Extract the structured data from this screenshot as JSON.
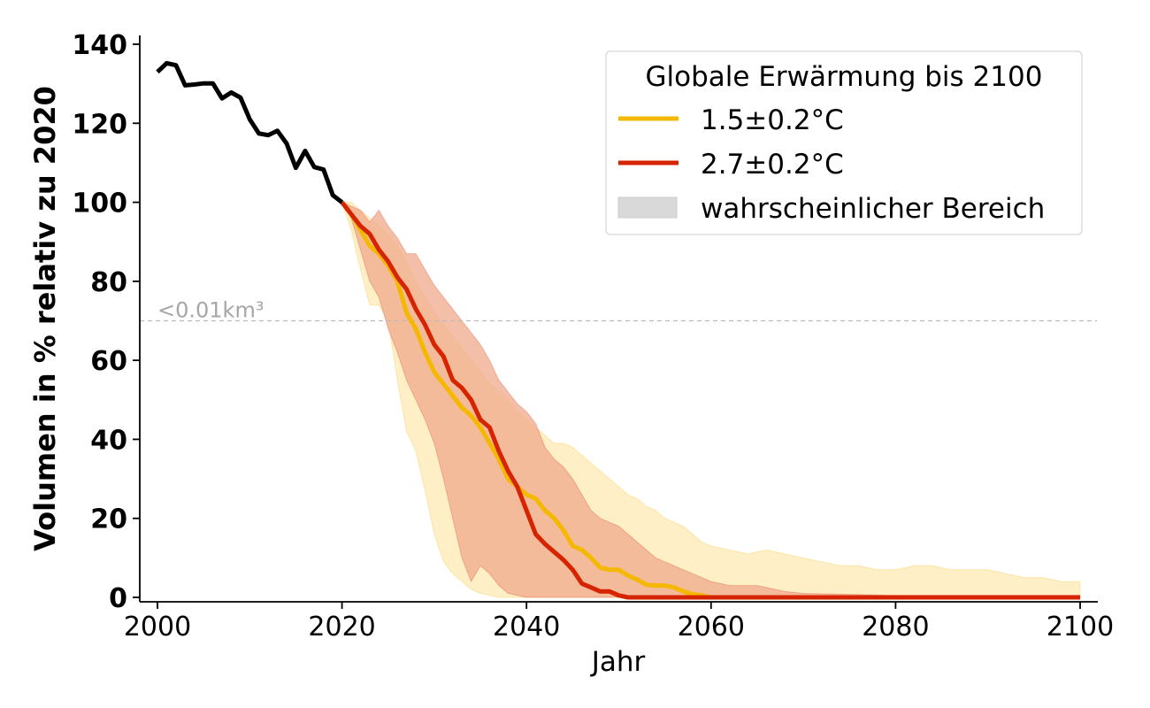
{
  "chart_data": {
    "type": "line",
    "xlabel": "Jahr",
    "ylabel": "Volumen in % relativ zu 2020",
    "xlim": [
      1998,
      2102
    ],
    "ylim": [
      -1,
      141
    ],
    "x_ticks": [
      2000,
      2020,
      2040,
      2060,
      2080,
      2100
    ],
    "y_ticks": [
      0,
      20,
      40,
      60,
      80,
      100,
      120,
      140
    ],
    "spines": "left-bottom",
    "grid": false,
    "reference_line": {
      "y": 70,
      "label": "<0.01km³",
      "style": "dashed",
      "color": "#bbbbbb"
    },
    "legend": {
      "title": "Globale Erwärmung bis 2100",
      "placement": "top-right",
      "entries": [
        {
          "label": "1.5±0.2°C",
          "kind": "line",
          "color": "#f5b800"
        },
        {
          "label": "2.7±0.2°C",
          "kind": "line",
          "color": "#d62400"
        },
        {
          "label": "wahrscheinlicher Bereich",
          "kind": "patch",
          "color": "#d9d9d9"
        }
      ]
    },
    "series": [
      {
        "kind": "historical",
        "color": "#000000",
        "x": [
          2000,
          2001,
          2002,
          2003,
          2004,
          2005,
          2006,
          2007,
          2008,
          2009,
          2010,
          2011,
          2012,
          2013,
          2014,
          2015,
          2016,
          2017,
          2018,
          2019,
          2020
        ],
        "y": [
          133,
          135.2,
          134.7,
          129.6,
          129.8,
          130.1,
          130.1,
          126.3,
          127.8,
          126.5,
          121,
          117.4,
          117,
          118.1,
          114.9,
          108.7,
          113,
          108.9,
          108.3,
          101.8,
          100
        ]
      },
      {
        "name": "1.5±0.2°C",
        "color": "#f5b800",
        "band_color": "#fde4a0",
        "x": [
          2020,
          2021,
          2022,
          2023,
          2024,
          2025,
          2026,
          2027,
          2028,
          2029,
          2030,
          2031,
          2032,
          2033,
          2034,
          2035,
          2036,
          2037,
          2038,
          2039,
          2040,
          2041,
          2042,
          2043,
          2044,
          2045,
          2046,
          2047,
          2048,
          2049,
          2050,
          2051,
          2052,
          2053,
          2054,
          2055,
          2056,
          2057,
          2058,
          2059,
          2060,
          2065,
          2070,
          2080,
          2090,
          2100
        ],
        "y": [
          100,
          97,
          93,
          89,
          87,
          84,
          80,
          72,
          68,
          62,
          57,
          54,
          51,
          48,
          46,
          43,
          39,
          35,
          30,
          28,
          26,
          25,
          22,
          20,
          17,
          13,
          12,
          10,
          7.5,
          7,
          7,
          5.5,
          4.5,
          3.2,
          3,
          3,
          2.5,
          1.5,
          0.8,
          0.5,
          0,
          0,
          0,
          0,
          0,
          0
        ],
        "band_x": [
          2020,
          2021,
          2022,
          2023,
          2024,
          2025,
          2026,
          2027,
          2028,
          2029,
          2030,
          2031,
          2032,
          2033,
          2034,
          2035,
          2036,
          2037,
          2038,
          2039,
          2040,
          2041,
          2042,
          2043,
          2044,
          2045,
          2046,
          2047,
          2048,
          2049,
          2050,
          2051,
          2052,
          2053,
          2054,
          2055,
          2056,
          2057,
          2058,
          2059,
          2060,
          2062,
          2064,
          2066,
          2068,
          2070,
          2072,
          2074,
          2076,
          2078,
          2080,
          2082,
          2084,
          2086,
          2088,
          2090,
          2092,
          2094,
          2096,
          2098,
          2100
        ],
        "band_upper": [
          100,
          100,
          98,
          96,
          94,
          92,
          89,
          85,
          80,
          76,
          72,
          69,
          66,
          63,
          60,
          57,
          54,
          52,
          50,
          47,
          45,
          43,
          41,
          39,
          39,
          38,
          36,
          34,
          32,
          30,
          28,
          26,
          25,
          23,
          22,
          20,
          19,
          18,
          16,
          14,
          13,
          12,
          11,
          12,
          11,
          10,
          9,
          8,
          8,
          7,
          7,
          8,
          8,
          7,
          7,
          7,
          6,
          5,
          5,
          4,
          4
        ],
        "band_lower": [
          100,
          93,
          83,
          74,
          74,
          70,
          55,
          42,
          37,
          27,
          16,
          9,
          6,
          4,
          2,
          1,
          0.5,
          0,
          0,
          0,
          0,
          0,
          0,
          0,
          0,
          0,
          0,
          0,
          0,
          0,
          0,
          0,
          0,
          0,
          0,
          0,
          0,
          0,
          0,
          0,
          0,
          0,
          0,
          0,
          0,
          0,
          0,
          0,
          0,
          0,
          0,
          0,
          0,
          0,
          0,
          0,
          0,
          0,
          0,
          0,
          0
        ]
      },
      {
        "name": "2.7±0.2°C",
        "color": "#d62400",
        "band_color": "#f0a98c",
        "x": [
          2020,
          2021,
          2022,
          2023,
          2024,
          2025,
          2026,
          2027,
          2028,
          2029,
          2030,
          2031,
          2032,
          2033,
          2034,
          2035,
          2036,
          2037,
          2038,
          2039,
          2040,
          2041,
          2042,
          2043,
          2044,
          2045,
          2046,
          2047,
          2048,
          2049,
          2050,
          2051,
          2052,
          2060,
          2070,
          2080,
          2090,
          2100
        ],
        "y": [
          100,
          97,
          94,
          92,
          88,
          85,
          81,
          78,
          73,
          69,
          64,
          61,
          55,
          53,
          50,
          45,
          43,
          37,
          32,
          28,
          22,
          16,
          13.5,
          11.5,
          9.5,
          7,
          3.5,
          2.5,
          1.5,
          1.5,
          0.5,
          0,
          0,
          0,
          0,
          0,
          0,
          0
        ],
        "band_x": [
          2020,
          2021,
          2022,
          2023,
          2024,
          2025,
          2026,
          2027,
          2028,
          2029,
          2030,
          2031,
          2032,
          2033,
          2034,
          2035,
          2036,
          2037,
          2038,
          2039,
          2040,
          2041,
          2042,
          2043,
          2044,
          2045,
          2046,
          2047,
          2048,
          2049,
          2050,
          2051,
          2052,
          2053,
          2054,
          2055,
          2056,
          2058,
          2060,
          2062,
          2065,
          2068,
          2070,
          2080,
          2090,
          2100
        ],
        "band_upper": [
          100,
          99,
          98,
          95,
          98,
          94,
          91,
          87,
          87,
          83,
          79,
          76,
          73,
          70,
          67,
          64,
          60,
          55,
          52,
          49,
          47,
          44,
          38,
          35,
          33,
          30,
          26,
          22,
          20,
          19,
          18,
          16,
          14,
          12,
          10,
          9,
          8,
          6,
          4,
          3,
          3,
          1.5,
          1,
          0.5,
          0.5,
          0.5
        ],
        "band_lower": [
          100,
          96,
          88,
          80,
          76,
          68,
          62,
          55,
          50,
          45,
          39,
          30,
          20,
          10,
          4,
          8,
          6,
          3,
          1,
          0.5,
          0,
          0,
          0,
          0,
          0,
          0,
          0,
          0,
          0,
          0,
          0,
          0,
          0,
          0,
          0,
          0,
          0,
          0,
          0,
          0,
          0,
          0,
          0,
          0,
          0,
          0
        ]
      }
    ]
  }
}
